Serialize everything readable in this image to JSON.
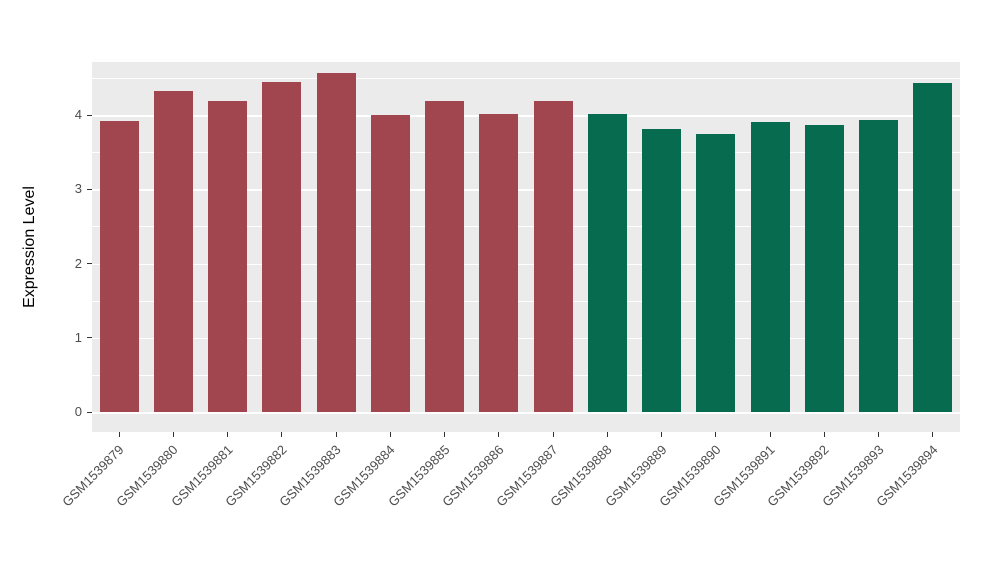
{
  "chart_data": {
    "type": "bar",
    "title": "",
    "xlabel": "",
    "ylabel": "Expression Level",
    "categories": [
      "GSM1539879",
      "GSM1539880",
      "GSM1539881",
      "GSM1539882",
      "GSM1539883",
      "GSM1539884",
      "GSM1539885",
      "GSM1539886",
      "GSM1539887",
      "GSM1539888",
      "GSM1539889",
      "GSM1539890",
      "GSM1539891",
      "GSM1539892",
      "GSM1539893",
      "GSM1539894"
    ],
    "values": [
      3.92,
      4.32,
      4.19,
      4.44,
      4.56,
      4.0,
      4.19,
      4.02,
      4.19,
      4.01,
      3.81,
      3.74,
      3.9,
      3.87,
      3.93,
      4.43
    ],
    "bar_colors": [
      "#A1454F",
      "#A1454F",
      "#A1454F",
      "#A1454F",
      "#A1454F",
      "#A1454F",
      "#A1454F",
      "#A1454F",
      "#A1454F",
      "#066B4F",
      "#066B4F",
      "#066B4F",
      "#066B4F",
      "#066B4F",
      "#066B4F",
      "#066B4F"
    ],
    "ylim": [
      0,
      4.8
    ],
    "yticks": [
      0,
      1,
      2,
      3,
      4
    ],
    "minor_ticks": [
      0.5,
      1.5,
      2.5,
      3.5,
      4.5
    ],
    "grid": true,
    "legend_position": "none",
    "colors": {
      "group_red": "#A1454F",
      "group_green": "#066B4F",
      "panel_background": "#EBEBEB",
      "gridline": "#FFFFFF",
      "tick_text": "#4D4D4D",
      "axis_title_text": "#000000"
    }
  }
}
